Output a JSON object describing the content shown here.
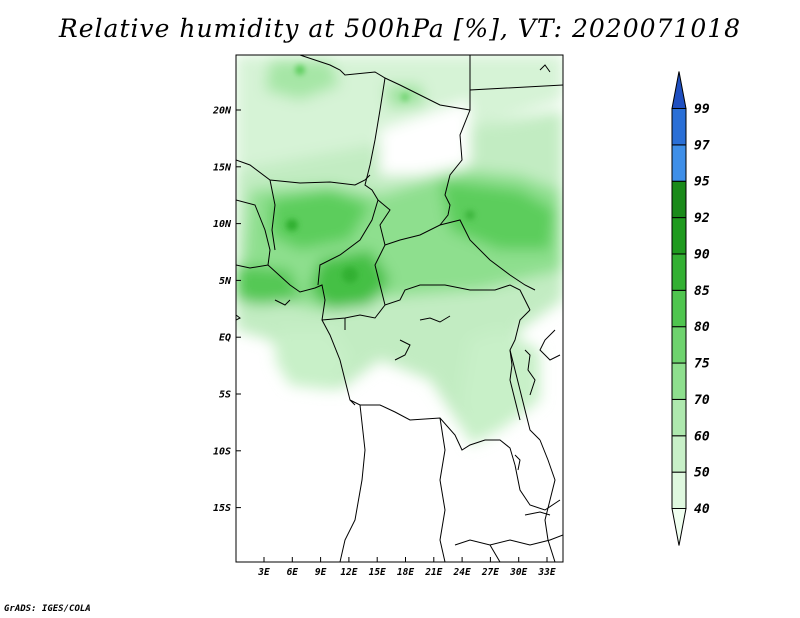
{
  "title": "Relative humidity at 500hPa [%], VT: 2020071018",
  "credit": "GrADS: IGES/COLA",
  "map": {
    "lat_ticks": [
      "20N",
      "15N",
      "10N",
      "5N",
      "EQ",
      "5S",
      "10S",
      "15S"
    ],
    "lon_ticks": [
      "3E",
      "6E",
      "9E",
      "12E",
      "15E",
      "18E",
      "21E",
      "24E",
      "27E",
      "30E",
      "33E"
    ]
  },
  "colorbar": {
    "labels": [
      "40",
      "50",
      "60",
      "70",
      "75",
      "80",
      "85",
      "90",
      "92",
      "95",
      "97",
      "99"
    ],
    "colors": [
      "#f0fff0",
      "#dff8df",
      "#c8f0c8",
      "#aee8ae",
      "#8edf8e",
      "#6ed36e",
      "#4fc54f",
      "#33b033",
      "#1f9a1f",
      "#1a8a1a",
      "#3f8fe8",
      "#2a6fd6",
      "#1f4fc0"
    ]
  }
}
